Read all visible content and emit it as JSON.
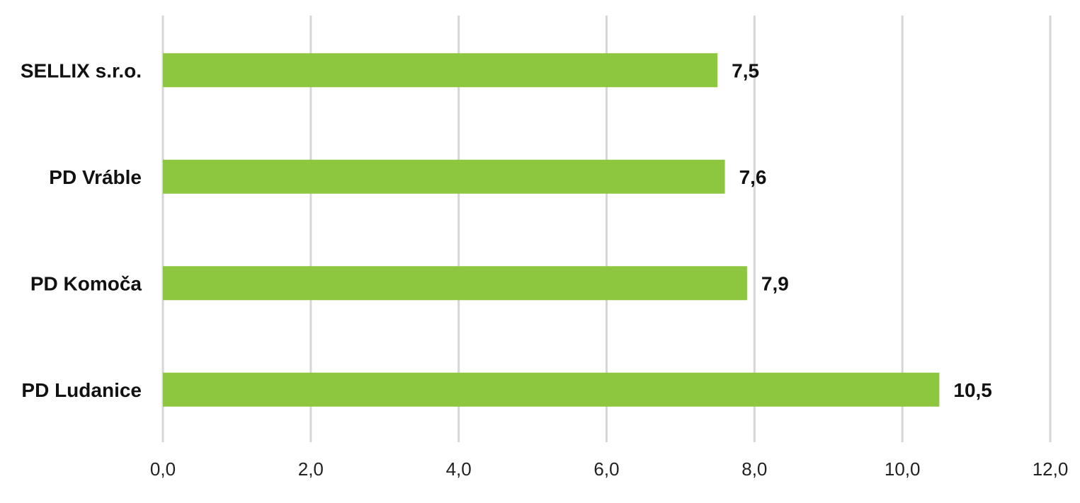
{
  "chart_data": {
    "type": "bar",
    "orientation": "horizontal",
    "categories": [
      "SELLIX s.r.o.",
      "PD Vráble",
      "PD Komoča",
      "PD Ludanice"
    ],
    "values": [
      7.5,
      7.6,
      7.9,
      10.5
    ],
    "value_labels": [
      "7,5",
      "7,6",
      "7,9",
      "10,5"
    ],
    "x_ticks": [
      0,
      2,
      4,
      6,
      8,
      10,
      12
    ],
    "x_tick_labels": [
      "0,0",
      "2,0",
      "4,0",
      "6,0",
      "8,0",
      "10,0",
      "12,0"
    ],
    "xlim": [
      0,
      12
    ],
    "grid": "vertical",
    "bar_color": "#8dc63f",
    "grid_color": "#d6d6d6",
    "legend": "none"
  }
}
